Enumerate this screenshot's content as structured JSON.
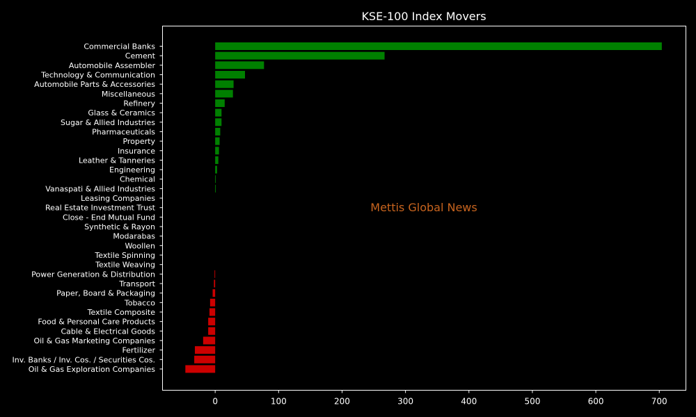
{
  "chart_data": {
    "type": "bar",
    "orientation": "horizontal",
    "title": "KSE-100 Index Movers",
    "watermark": "Mettis Global News",
    "xlabel": "",
    "ylabel": "",
    "xlim": [
      -83,
      742
    ],
    "xticks": [
      0,
      100,
      200,
      300,
      400,
      500,
      600,
      700
    ],
    "grid": false,
    "legend": "none",
    "categories": [
      "Commercial Banks",
      "Cement",
      "Automobile Assembler",
      "Technology & Communication",
      "Automobile Parts & Accessories",
      "Miscellaneous",
      "Refinery",
      "Glass & Ceramics",
      "Sugar & Allied Industries",
      "Pharmaceuticals",
      "Property",
      "Insurance",
      "Leather & Tanneries",
      "Engineering",
      "Chemical",
      "Vanaspati & Allied Industries",
      "Leasing Companies",
      "Real Estate Investment Trust",
      "Close - End Mutual Fund",
      "Synthetic & Rayon",
      "Modarabas",
      "Woollen",
      "Textile Spinning",
      "Textile Weaving",
      "Power Generation & Distribution",
      "Transport",
      "Paper, Board & Packaging",
      "Tobacco",
      "Textile Composite",
      "Food & Personal Care Products",
      "Cable & Electrical Goods",
      "Oil & Gas Marketing Companies",
      "Fertilizer",
      "Inv. Banks / Inv. Cos. / Securities Cos.",
      "Oil & Gas Exploration Companies"
    ],
    "values": [
      704,
      267,
      77,
      47,
      29,
      28,
      15,
      10,
      10,
      8,
      7,
      6,
      5,
      3,
      1,
      1,
      0,
      0,
      0,
      0,
      0,
      0,
      0,
      0,
      -1,
      -2,
      -4,
      -8,
      -9,
      -11,
      -11,
      -19,
      -32,
      -33,
      -47
    ],
    "colors": {
      "positive": "#008000",
      "negative": "#cc0000",
      "background": "#000000",
      "axis": "#ffffff",
      "text": "#ffffff",
      "watermark": "#c8641e"
    }
  }
}
